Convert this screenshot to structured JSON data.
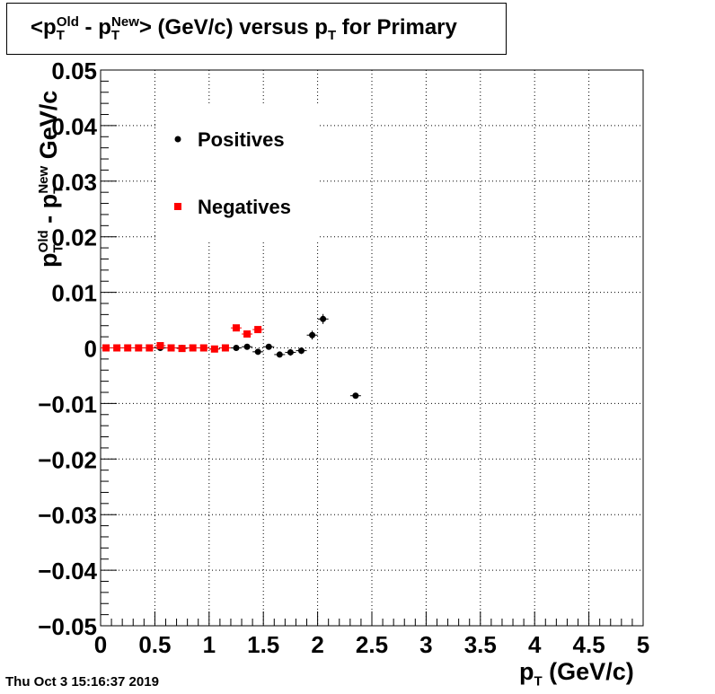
{
  "title": {
    "prefix": "<p",
    "sub1": "T",
    "sup1": "Old",
    "mid": " - p",
    "sub2": "T",
    "sup2": "New",
    "suffix": "> (GeV/c) versus p",
    "sub3": "T",
    "tail": " for Primary"
  },
  "footer": "Thu Oct  3 15:16:37 2019",
  "xlabel": {
    "main": "p",
    "sub": "T",
    "unit": " (GeV/c)"
  },
  "ylabel": {
    "p1": "p",
    "sub1": "T",
    "sup1": "Old",
    "mid": " - p",
    "sub2": "T",
    "sup2": "New",
    "unit": " GeV/c"
  },
  "chart_data": {
    "type": "scatter",
    "xlim": [
      0,
      5
    ],
    "ylim": [
      -0.05,
      0.05
    ],
    "x_ticks": [
      "0",
      "0.5",
      "1",
      "1.5",
      "2",
      "2.5",
      "3",
      "3.5",
      "4",
      "4.5",
      "5"
    ],
    "x_tick_values": [
      0,
      0.5,
      1,
      1.5,
      2,
      2.5,
      3,
      3.5,
      4,
      4.5,
      5
    ],
    "y_ticks": [
      "0.05",
      "0.04",
      "0.03",
      "0.02",
      "0.01",
      "0",
      "−0.01",
      "−0.02",
      "−0.03",
      "−0.04",
      "−0.05"
    ],
    "y_tick_values": [
      0.05,
      0.04,
      0.03,
      0.02,
      0.01,
      0,
      -0.01,
      -0.02,
      -0.03,
      -0.04,
      -0.05
    ],
    "grid": true,
    "legend_position": "top-left",
    "series": [
      {
        "name": "Positives",
        "color": "#000000",
        "marker": "circle",
        "x": [
          0.05,
          0.15,
          0.25,
          0.35,
          0.45,
          0.55,
          0.65,
          0.75,
          0.85,
          0.95,
          1.05,
          1.15,
          1.25,
          1.35,
          1.45,
          1.55,
          1.65,
          1.75,
          1.85,
          1.95,
          2.05,
          2.35
        ],
        "y": [
          0.0,
          0.0,
          0.0,
          0.0,
          0.0,
          0.0,
          0.0,
          0.0,
          0.0,
          0.0,
          -0.0002,
          0.0,
          0.0,
          0.0002,
          -0.0007,
          0.0002,
          -0.0012,
          -0.0008,
          -0.0005,
          0.0023,
          0.0052,
          -0.0086
        ],
        "yerr": [
          0.0001,
          0.0001,
          0.0001,
          0.0001,
          0.0001,
          0.0002,
          0.0002,
          0.0002,
          0.0002,
          0.0002,
          0.0003,
          0.0003,
          0.0003,
          0.0004,
          0.0005,
          0.0005,
          0.0005,
          0.0006,
          0.0006,
          0.0008,
          0.0009,
          0.0005
        ]
      },
      {
        "name": "Negatives",
        "color": "#ff0000",
        "marker": "square",
        "x": [
          0.05,
          0.15,
          0.25,
          0.35,
          0.45,
          0.55,
          0.65,
          0.75,
          0.85,
          0.95,
          1.05,
          1.15,
          1.25,
          1.35,
          1.45
        ],
        "y": [
          0.0,
          0.0,
          0.0,
          0.0,
          0.0,
          0.0004,
          0.0,
          -0.0001,
          0.0,
          0.0,
          -0.0002,
          0.0,
          0.0036,
          0.0025,
          0.0033
        ],
        "yerr": [
          0.0001,
          0.0001,
          0.0001,
          0.0001,
          0.0001,
          0.0002,
          0.0002,
          0.0002,
          0.0002,
          0.0002,
          0.0003,
          0.0003,
          0.0003,
          0.0004,
          0.0005
        ]
      }
    ]
  }
}
